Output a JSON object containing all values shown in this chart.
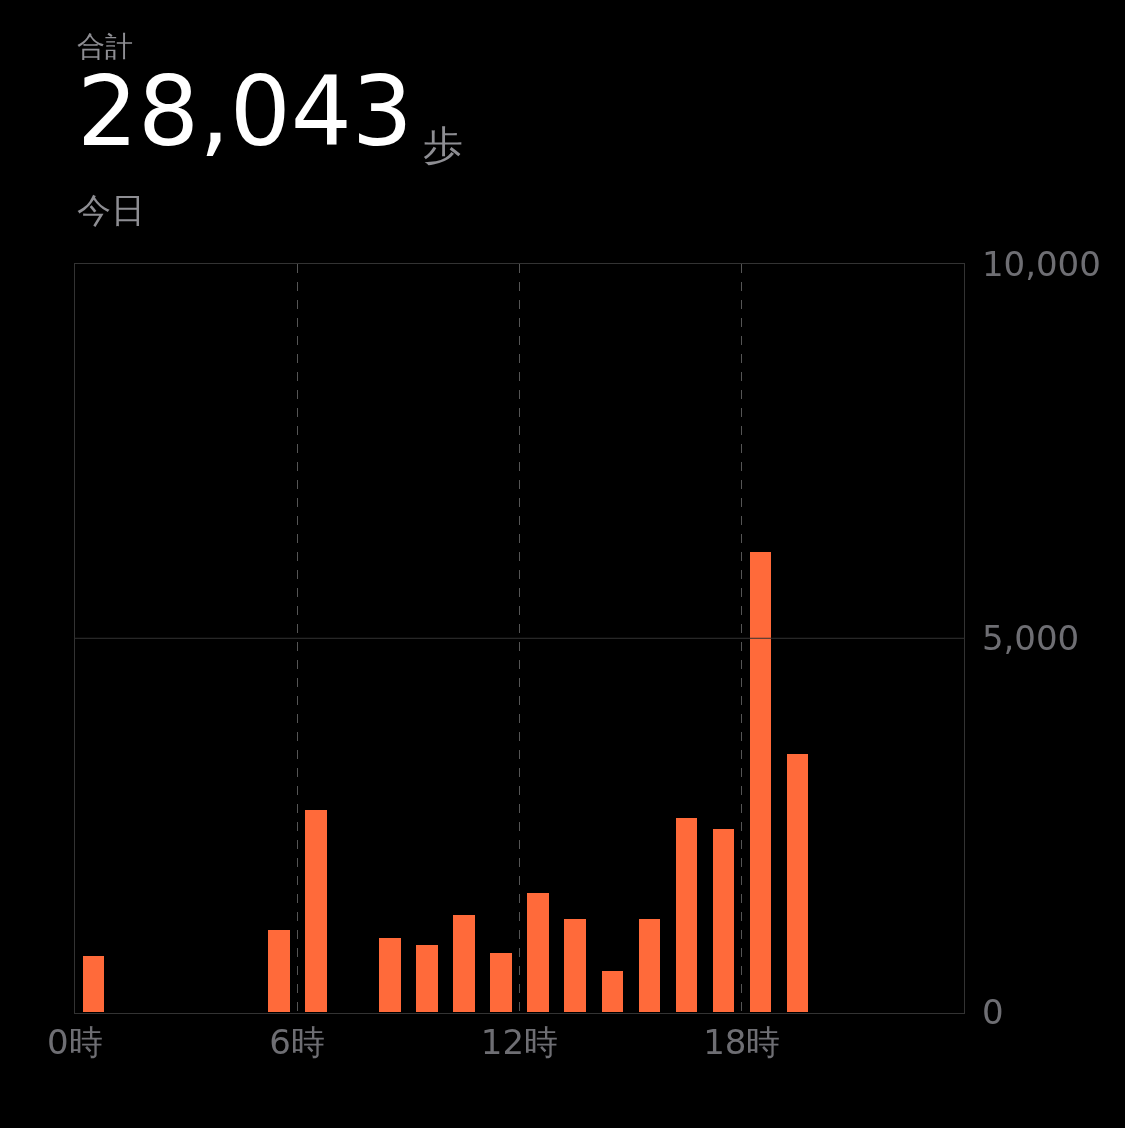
{
  "chart_data": {
    "type": "bar",
    "title": "28,043",
    "subtitle": "今日",
    "annotations": [
      "合計",
      "歩"
    ],
    "x": [
      0.5,
      5.5,
      6.5,
      8.5,
      9.5,
      10.5,
      11.5,
      12.5,
      13.5,
      14.5,
      15.5,
      16.5,
      17.5,
      18.5,
      19.5
    ],
    "values": [
      750,
      1100,
      2700,
      1000,
      900,
      1300,
      800,
      1600,
      1250,
      550,
      1250,
      2600,
      2450,
      6150,
      3450
    ],
    "color": "#ff6a3a",
    "xlim": [
      0,
      24
    ],
    "xticks": [
      {
        "value": 0,
        "label": "0時"
      },
      {
        "value": 6,
        "label": "6時"
      },
      {
        "value": 12,
        "label": "12時"
      },
      {
        "value": 18,
        "label": "18時"
      }
    ],
    "ylim": [
      0,
      10000
    ],
    "yticks": [
      {
        "value": 0,
        "label": "0"
      },
      {
        "value": 5000,
        "label": "5,000"
      },
      {
        "value": 10000,
        "label": "10,000"
      }
    ],
    "ref_lines": [
      {
        "axis": "y",
        "value": 5000,
        "color": "#333333"
      }
    ],
    "grid": "x"
  }
}
